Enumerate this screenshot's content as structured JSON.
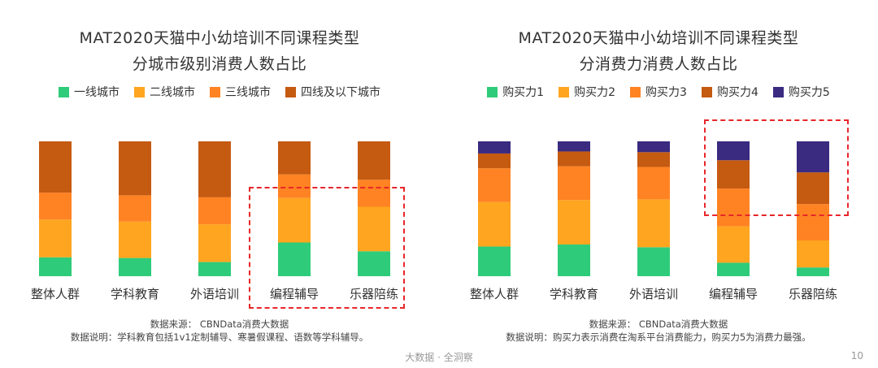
{
  "left": {
    "title_line1": "MAT2020天猫中小幼培训不同课程类型",
    "title_line2": "分城市级别消费人数占比",
    "note_source": "数据来源： CBNData消费大数据",
    "note_explain": "数据说明：学科教育包括1v1定制辅导、寒暑假课程、语数等学科辅导。"
  },
  "right": {
    "title_line1": "MAT2020天猫中小幼培训不同课程类型",
    "title_line2": "分消费力消费人数占比",
    "note_source": "数据来源： CBNData消费大数据",
    "note_explain": "数据说明：购买力表示消费在淘系平台消费能力，购买力5为消费力最强。"
  },
  "footer": {
    "center": "大数据 · 全洞察",
    "page": "10"
  },
  "colors": {
    "green": "#2ecc7a",
    "yellow": "#ffa51f",
    "orange": "#ff8323",
    "brown": "#c55a11",
    "purple": "#3a2a80",
    "highlight": "#e8262a"
  },
  "chart_data": [
    {
      "type": "bar",
      "stacked": true,
      "percent": true,
      "title": "MAT2020天猫中小幼培训不同课程类型 分城市级别消费人数占比",
      "categories": [
        "整体人群",
        "学科教育",
        "外语培训",
        "编程辅导",
        "乐器陪练"
      ],
      "series": [
        {
          "name": "一线城市",
          "color": "#2ecc7a",
          "values": [
            14,
            13.5,
            10.5,
            25,
            18.5
          ]
        },
        {
          "name": "二线城市",
          "color": "#ffa51f",
          "values": [
            28,
            27,
            28,
            33,
            33
          ]
        },
        {
          "name": "三线城市",
          "color": "#ff8323",
          "values": [
            20,
            19.5,
            20,
            17.5,
            20
          ]
        },
        {
          "name": "四线及以下城市",
          "color": "#c55a11",
          "values": [
            38,
            40,
            41.5,
            24.5,
            28.5
          ]
        }
      ],
      "legend_position": "top",
      "grid": false,
      "highlighted_categories": [
        "编程辅导",
        "乐器陪练"
      ]
    },
    {
      "type": "bar",
      "stacked": true,
      "percent": true,
      "title": "MAT2020天猫中小幼培训不同课程类型 分消费力消费人数占比",
      "categories": [
        "整体人群",
        "学科教育",
        "外语培训",
        "编程辅导",
        "乐器陪练"
      ],
      "series": [
        {
          "name": "购买力1",
          "color": "#2ecc7a",
          "values": [
            22,
            23.5,
            21.5,
            10,
            6.5
          ]
        },
        {
          "name": "购买力2",
          "color": "#ffa51f",
          "values": [
            33,
            33,
            35.5,
            27,
            20
          ]
        },
        {
          "name": "购买力3",
          "color": "#ff8323",
          "values": [
            25,
            25,
            24,
            28,
            27
          ]
        },
        {
          "name": "购买力4",
          "color": "#c55a11",
          "values": [
            11,
            11,
            11,
            21,
            23.5
          ]
        },
        {
          "name": "购买力5",
          "color": "#3a2a80",
          "values": [
            9,
            7.5,
            8,
            14,
            23
          ]
        }
      ],
      "legend_position": "top",
      "grid": false,
      "highlighted_categories": [
        "编程辅导",
        "乐器陪练"
      ]
    }
  ]
}
